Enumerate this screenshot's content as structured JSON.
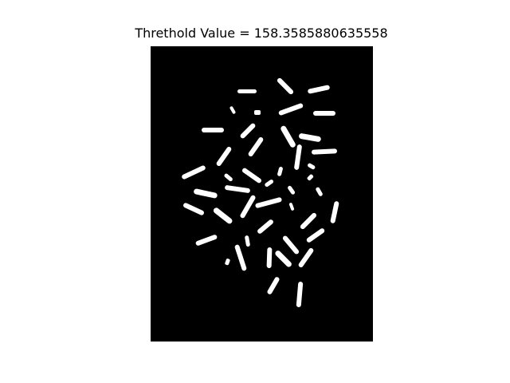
{
  "figure": {
    "title": "Threthold Value = 158.3585880635558"
  },
  "image": {
    "description_type": "binary-thresholded-image",
    "background_color": "#000000",
    "foreground_color": "#ffffff"
  }
}
